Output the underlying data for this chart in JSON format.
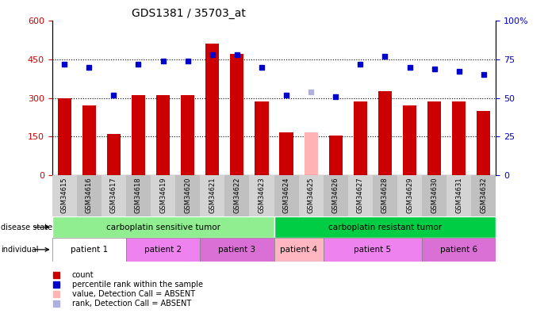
{
  "title": "GDS1381 / 35703_at",
  "samples": [
    "GSM34615",
    "GSM34616",
    "GSM34617",
    "GSM34618",
    "GSM34619",
    "GSM34620",
    "GSM34621",
    "GSM34622",
    "GSM34623",
    "GSM34624",
    "GSM34625",
    "GSM34626",
    "GSM34627",
    "GSM34628",
    "GSM34629",
    "GSM34630",
    "GSM34631",
    "GSM34632"
  ],
  "bar_values": [
    300,
    270,
    160,
    310,
    310,
    310,
    510,
    470,
    285,
    165,
    165,
    155,
    285,
    325,
    270,
    285,
    285,
    250
  ],
  "bar_colors": [
    "#cc0000",
    "#cc0000",
    "#cc0000",
    "#cc0000",
    "#cc0000",
    "#cc0000",
    "#cc0000",
    "#cc0000",
    "#cc0000",
    "#cc0000",
    "#ffb3b3",
    "#cc0000",
    "#cc0000",
    "#cc0000",
    "#cc0000",
    "#cc0000",
    "#cc0000",
    "#cc0000"
  ],
  "dot_values_pct": [
    72,
    70,
    52,
    72,
    74,
    74,
    78,
    78,
    70,
    52,
    54,
    51,
    72,
    77,
    70,
    69,
    67,
    65
  ],
  "dot_colors": [
    "#0000cc",
    "#0000cc",
    "#0000cc",
    "#0000cc",
    "#0000cc",
    "#0000cc",
    "#0000cc",
    "#0000cc",
    "#0000cc",
    "#0000cc",
    "#b0b0e0",
    "#0000cc",
    "#0000cc",
    "#0000cc",
    "#0000cc",
    "#0000cc",
    "#0000cc",
    "#0000cc"
  ],
  "ylim_left": [
    0,
    600
  ],
  "ylim_right": [
    0,
    100
  ],
  "yticks_left": [
    0,
    150,
    300,
    450,
    600
  ],
  "yticks_right": [
    0,
    25,
    50,
    75,
    100
  ],
  "hlines": [
    150,
    300,
    450
  ],
  "disease_state_groups": [
    {
      "label": "carboplatin sensitive tumor",
      "start": 0,
      "end": 8,
      "color": "#90ee90"
    },
    {
      "label": "carboplatin resistant tumor",
      "start": 9,
      "end": 17,
      "color": "#00cc44"
    }
  ],
  "individual_groups": [
    {
      "label": "patient 1",
      "start": 0,
      "end": 2,
      "color": "#ffffff"
    },
    {
      "label": "patient 2",
      "start": 3,
      "end": 5,
      "color": "#ee82ee"
    },
    {
      "label": "patient 3",
      "start": 6,
      "end": 8,
      "color": "#da70d6"
    },
    {
      "label": "patient 4",
      "start": 9,
      "end": 10,
      "color": "#ffb6c1"
    },
    {
      "label": "patient 5",
      "start": 11,
      "end": 14,
      "color": "#ee82ee"
    },
    {
      "label": "patient 6",
      "start": 15,
      "end": 17,
      "color": "#da70d6"
    }
  ],
  "legend_items": [
    {
      "label": "count",
      "color": "#cc0000"
    },
    {
      "label": "percentile rank within the sample",
      "color": "#0000cc"
    },
    {
      "label": "value, Detection Call = ABSENT",
      "color": "#ffb3b3"
    },
    {
      "label": "rank, Detection Call = ABSENT",
      "color": "#b0b0e0"
    }
  ],
  "left_axis_color": "#cc0000",
  "right_axis_color": "#0000cc",
  "bar_width": 0.55,
  "fig_width": 6.91,
  "fig_height": 4.05,
  "dpi": 100
}
